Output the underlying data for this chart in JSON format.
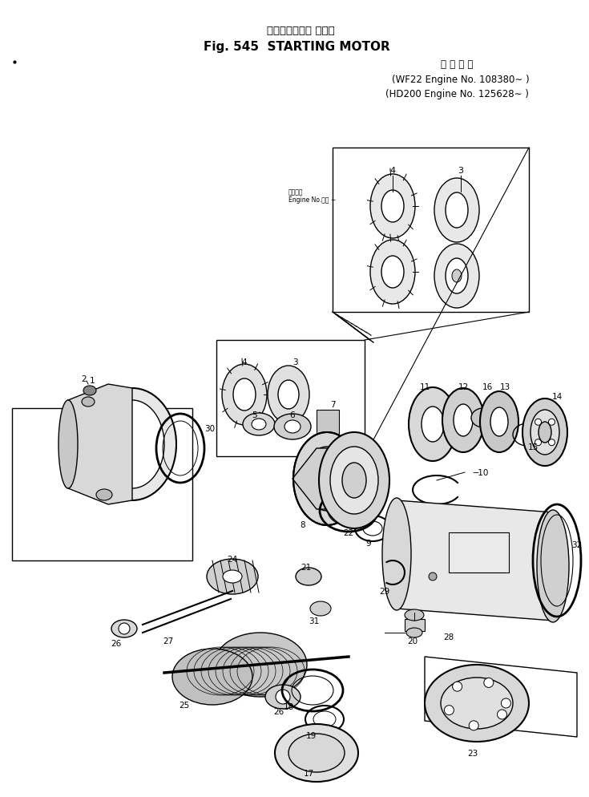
{
  "title_japanese": "スターティング モータ",
  "title_english": "Fig. 545  STARTING MOTOR",
  "subtitle_japanese": "適 用 号 機",
  "engine_line1": "(WF22 Engine No. 108380∼ )",
  "engine_line2": "(HD200 Engine No. 125628∼ )",
  "inset_note": "適用号番\nEngine No.・・ ∼",
  "bg_color": "#ffffff",
  "line_color": "#000000",
  "fig_width": 7.35,
  "fig_height": 9.95,
  "dpi": 100
}
